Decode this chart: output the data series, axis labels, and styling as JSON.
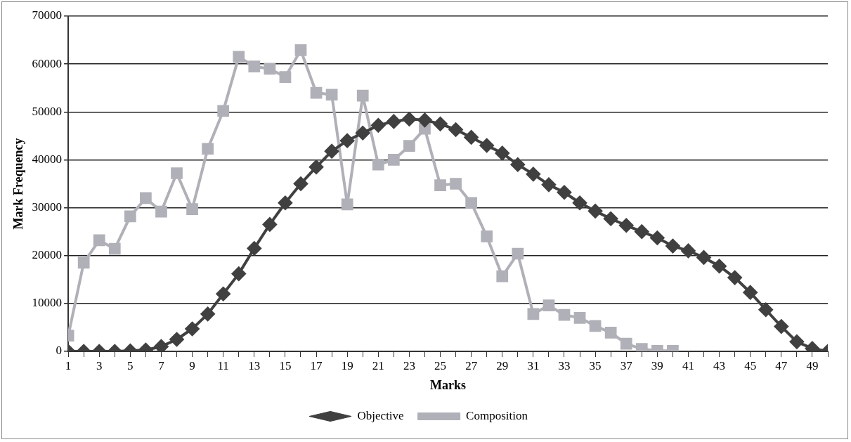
{
  "chart_data": {
    "type": "line",
    "xlabel": "Marks",
    "ylabel": "Mark Frequency",
    "x": [
      1,
      2,
      3,
      4,
      5,
      6,
      7,
      8,
      9,
      10,
      11,
      12,
      13,
      14,
      15,
      16,
      17,
      18,
      19,
      20,
      21,
      22,
      23,
      24,
      25,
      26,
      27,
      28,
      29,
      30,
      31,
      32,
      33,
      34,
      35,
      36,
      37,
      38,
      39,
      40,
      41,
      42,
      43,
      44,
      45,
      46,
      47,
      48,
      49,
      50
    ],
    "xlim": [
      1,
      50
    ],
    "xticks": [
      1,
      {
        "value": 2,
        "label": null
      },
      3,
      {
        "value": 4,
        "label": null
      },
      5,
      {
        "value": 6,
        "label": null
      },
      7,
      {
        "value": 8,
        "label": null
      },
      9,
      {
        "value": 10,
        "label": null
      },
      11,
      {
        "value": 12,
        "label": null
      },
      13,
      {
        "value": 14,
        "label": null
      },
      15,
      {
        "value": 16,
        "label": null
      },
      17,
      {
        "value": 18,
        "label": null
      },
      19,
      {
        "value": 20,
        "label": null
      },
      21,
      {
        "value": 22,
        "label": null
      },
      23,
      {
        "value": 24,
        "label": null
      },
      25,
      {
        "value": 26,
        "label": null
      },
      27,
      {
        "value": 28,
        "label": null
      },
      29,
      {
        "value": 30,
        "label": null
      },
      31,
      {
        "value": 32,
        "label": null
      },
      33,
      {
        "value": 34,
        "label": null
      },
      35,
      {
        "value": 36,
        "label": null
      },
      37,
      {
        "value": 38,
        "label": null
      },
      39,
      {
        "value": 40,
        "label": null
      },
      41,
      {
        "value": 42,
        "label": null
      },
      43,
      {
        "value": 44,
        "label": null
      },
      45,
      {
        "value": 46,
        "label": null
      },
      47,
      {
        "value": 48,
        "label": null
      },
      49,
      {
        "value": 50,
        "label": null
      }
    ],
    "series": [
      {
        "name": "Objective",
        "color": "#404040",
        "marker": "diamond",
        "values": [
          0,
          0,
          0,
          0,
          100,
          300,
          1000,
          2500,
          4700,
          7800,
          12000,
          16200,
          21500,
          26500,
          31000,
          35000,
          38500,
          41800,
          44000,
          45600,
          47200,
          48000,
          48500,
          48300,
          47500,
          46300,
          44700,
          43000,
          41400,
          39000,
          37000,
          34800,
          33200,
          31000,
          29300,
          27700,
          26300,
          25000,
          23700,
          22000,
          21000,
          19600,
          17800,
          15400,
          12300,
          8700,
          5200,
          2000,
          600,
          0
        ]
      },
      {
        "name": "Composition",
        "color": "#b0b0b8",
        "marker": "square",
        "values": [
          3300,
          18500,
          23200,
          21400,
          28200,
          32000,
          29200,
          37200,
          29700,
          42300,
          50200,
          61500,
          59500,
          59000,
          57300,
          62900,
          54000,
          53600,
          30700,
          53400,
          39000,
          40000,
          42900,
          46500,
          34700,
          35000,
          31000,
          24000,
          15700,
          20400,
          7800,
          9600,
          7600,
          7000,
          5300,
          3900,
          1600,
          500,
          100,
          100,
          null,
          null,
          null,
          null,
          null,
          null,
          null,
          null,
          null,
          null
        ]
      }
    ],
    "ylim": [
      0,
      70000
    ],
    "yticks": [
      0,
      10000,
      20000,
      30000,
      40000,
      50000,
      60000,
      70000
    ],
    "grid": "y",
    "legend": "bottom",
    "line_style": "solid"
  }
}
